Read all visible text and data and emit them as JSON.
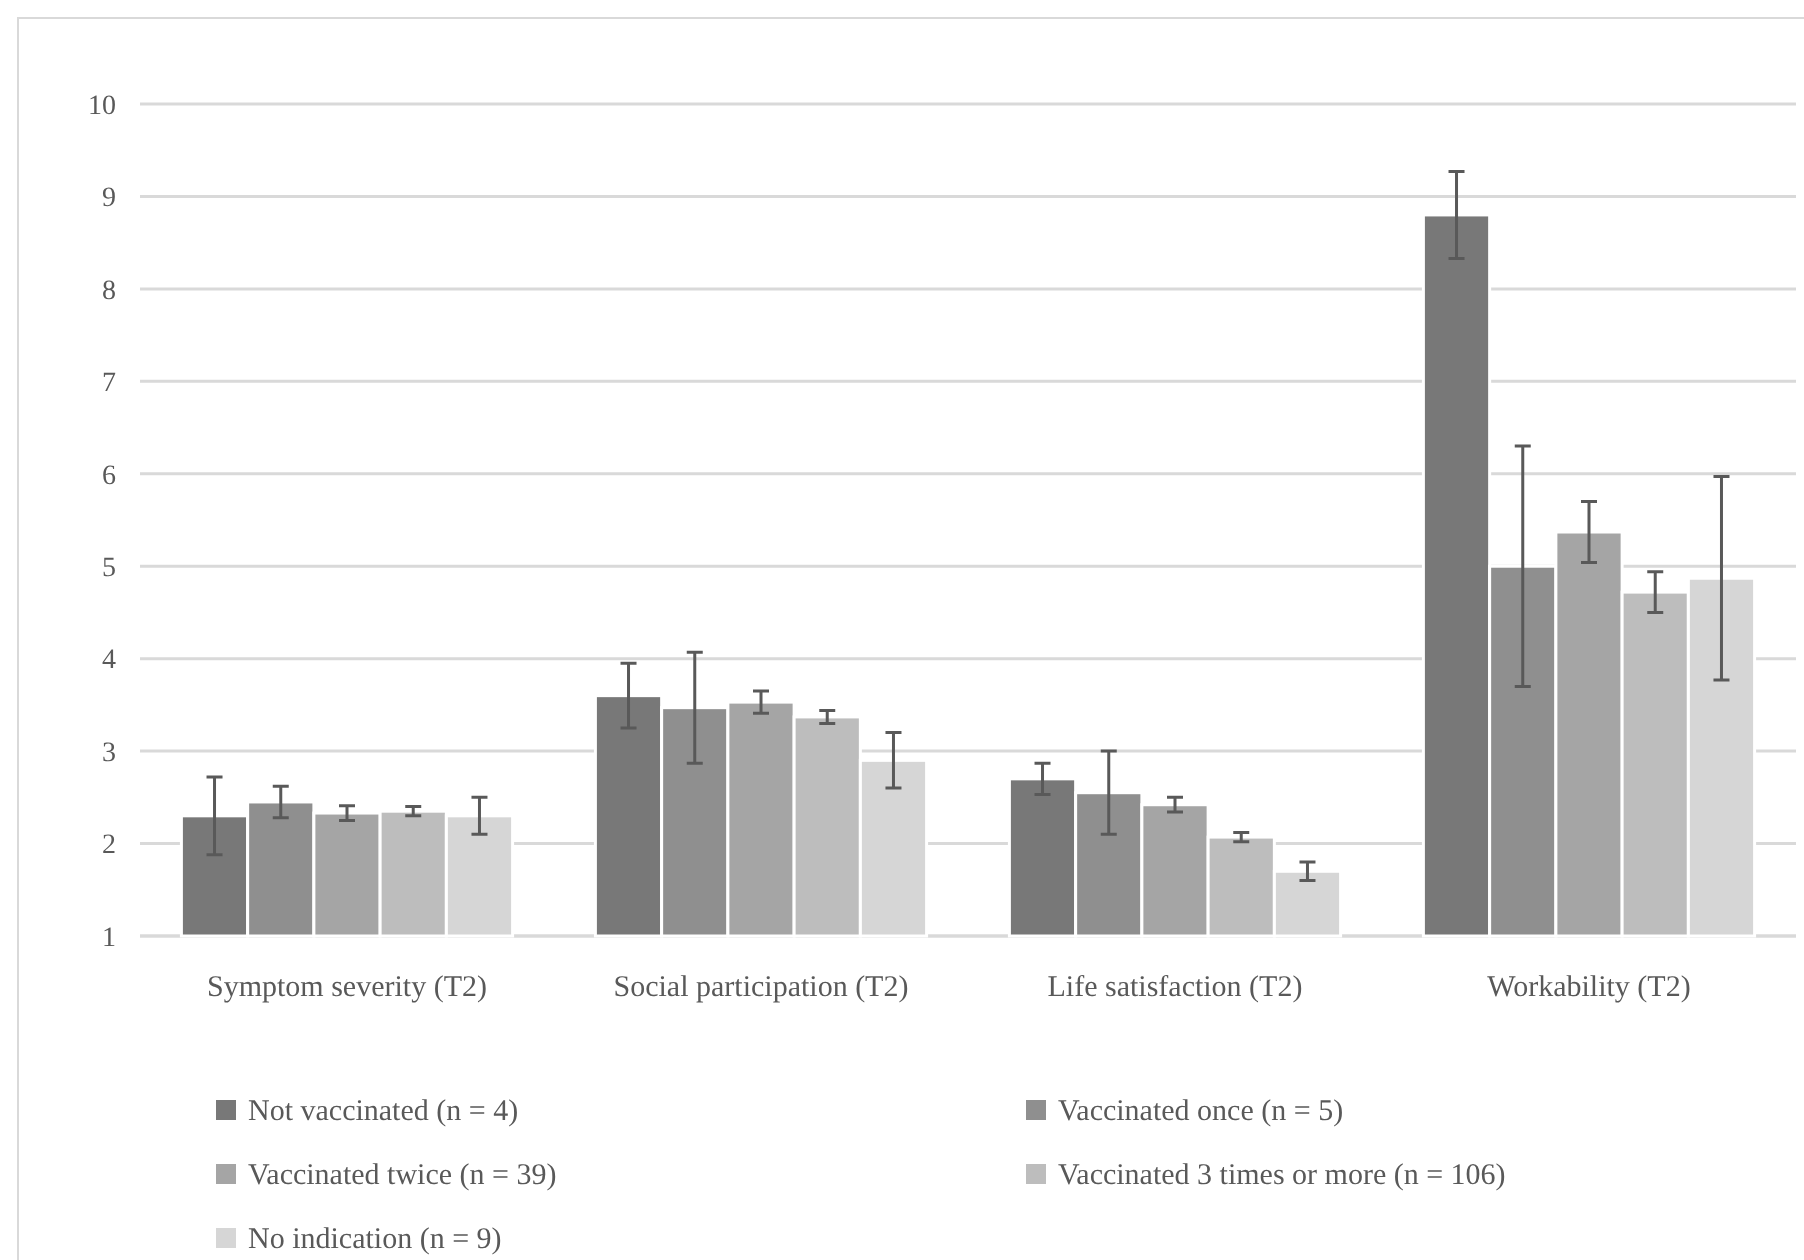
{
  "chart_data": {
    "type": "bar",
    "categories": [
      "Symptom severity (T2)",
      "Social participation (T2)",
      "Life satisfaction (T2)",
      "Workability (T2)"
    ],
    "series": [
      {
        "name": "Not vaccinated (n = 4)",
        "color": "#787878",
        "values": [
          2.3,
          3.6,
          2.7,
          8.8
        ],
        "errors": [
          0.42,
          0.35,
          0.17,
          0.47
        ]
      },
      {
        "name": "Vaccinated once (n = 5)",
        "color": "#8f8f8f",
        "values": [
          2.45,
          3.47,
          2.55,
          5.0
        ],
        "errors": [
          0.17,
          0.6,
          0.45,
          1.3
        ]
      },
      {
        "name": "Vaccinated twice (n = 39)",
        "color": "#a5a5a5",
        "values": [
          2.33,
          3.53,
          2.42,
          5.37
        ],
        "errors": [
          0.08,
          0.12,
          0.08,
          0.33
        ]
      },
      {
        "name": "Vaccinated 3 times or more (n = 106)",
        "color": "#bdbdbd",
        "values": [
          2.35,
          3.37,
          2.07,
          4.72
        ],
        "errors": [
          0.05,
          0.07,
          0.05,
          0.22
        ]
      },
      {
        "name": "No indication (n = 9)",
        "color": "#d6d6d6",
        "values": [
          2.3,
          2.9,
          1.7,
          4.87
        ],
        "errors": [
          0.2,
          0.3,
          0.1,
          1.1
        ]
      }
    ],
    "ylim": [
      1,
      10
    ],
    "yticks": [
      1,
      2,
      3,
      4,
      5,
      6,
      7,
      8,
      9,
      10
    ],
    "grid": "y",
    "legend": "bottom"
  }
}
